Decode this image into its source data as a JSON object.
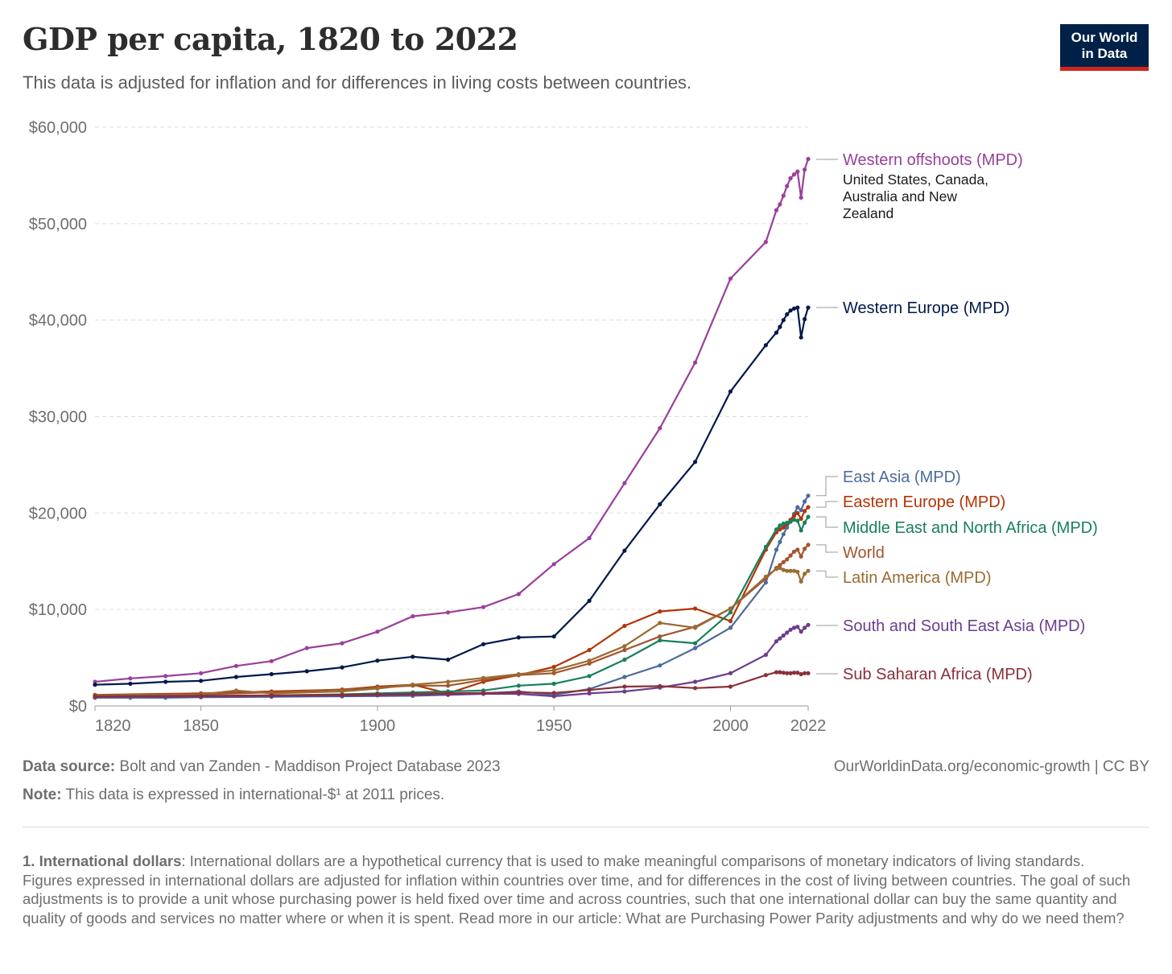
{
  "title": "GDP per capita, 1820 to 2022",
  "subtitle": "This data is adjusted for inflation and for differences in living costs between countries.",
  "logo": {
    "line1": "Our World",
    "line2": "in Data"
  },
  "colors": {
    "logo_bg": "#002147",
    "logo_accent": "#ce261e",
    "grid": "#dddddd"
  },
  "footer": {
    "source_label": "Data source:",
    "source_text": "Bolt and van Zanden - Maddison Project Database 2023",
    "note_label": "Note:",
    "note_text": "This data is expressed in international-$¹ at 2011 prices.",
    "url": "OurWorldinData.org/economic-growth | CC BY"
  },
  "footnote": {
    "label": "1. International dollars",
    "text": ": International dollars are a hypothetical currency that is used to make meaningful comparisons of monetary indicators of living standards. Figures expressed in international dollars are adjusted for inflation within countries over time, and for differences in the cost of living between countries. The goal of such adjustments is to provide a unit whose purchasing power is held fixed over time and across countries, such that one international dollar can buy the same quantity and quality of goods and services no matter where or when it is spent. Read more in our article: What are Purchasing Power Parity adjustments and why do we need them?"
  },
  "chart_data": {
    "type": "line",
    "xlim": [
      1820,
      2022
    ],
    "ylim": [
      0,
      60000
    ],
    "xticks": [
      1820,
      1850,
      1900,
      1950,
      2000,
      2022
    ],
    "xtick_labels": [
      "1820",
      "1850",
      "1900",
      "1950",
      "2000",
      "2022"
    ],
    "yticks": [
      0,
      10000,
      20000,
      30000,
      40000,
      50000,
      60000
    ],
    "ytick_labels": [
      "$0",
      "$10,000",
      "$20,000",
      "$30,000",
      "$40,000",
      "$50,000",
      "$60,000"
    ],
    "grid": true,
    "legend": "right, labels at line ends",
    "series": [
      {
        "name": "Western offshoots (MPD)",
        "note": "United States, Canada, Australia and New Zealand",
        "color": "#993f9a",
        "x": [
          1820,
          1830,
          1840,
          1850,
          1860,
          1870,
          1880,
          1890,
          1900,
          1910,
          1920,
          1930,
          1940,
          1950,
          1960,
          1970,
          1980,
          1990,
          2000,
          2010,
          2013,
          2014,
          2015,
          2016,
          2017,
          2018,
          2019,
          2020,
          2021,
          2022
        ],
        "y": [
          2500,
          2850,
          3100,
          3400,
          4150,
          4650,
          6000,
          6500,
          7700,
          9300,
          9700,
          10250,
          11600,
          14700,
          17400,
          23100,
          28800,
          35600,
          44300,
          48100,
          51400,
          52000,
          52900,
          53900,
          54700,
          55100,
          55400,
          52700,
          55600,
          56700
        ]
      },
      {
        "name": "Western Europe (MPD)",
        "color": "#00194a",
        "x": [
          1820,
          1830,
          1840,
          1850,
          1860,
          1870,
          1880,
          1890,
          1900,
          1910,
          1920,
          1930,
          1940,
          1950,
          1960,
          1970,
          1980,
          1990,
          2000,
          2010,
          2013,
          2014,
          2015,
          2016,
          2017,
          2018,
          2019,
          2020,
          2021,
          2022
        ],
        "y": [
          2200,
          2300,
          2500,
          2600,
          3000,
          3300,
          3600,
          4000,
          4700,
          5100,
          4800,
          6400,
          7100,
          7200,
          10900,
          16100,
          20900,
          25300,
          32600,
          37400,
          38700,
          39300,
          40000,
          40600,
          41000,
          41200,
          41300,
          38200,
          40100,
          41300
        ]
      },
      {
        "name": "East Asia (MPD)",
        "color": "#4c6a9c",
        "x": [
          1820,
          1830,
          1840,
          1850,
          1870,
          1890,
          1910,
          1920,
          1930,
          1940,
          1950,
          1960,
          1970,
          1980,
          1990,
          2000,
          2010,
          2013,
          2014,
          2015,
          2016,
          2017,
          2018,
          2019,
          2020,
          2021,
          2022
        ],
        "y": [
          850,
          850,
          850,
          900,
          950,
          1000,
          1050,
          1150,
          1300,
          1500,
          1150,
          1750,
          3000,
          4200,
          6000,
          8100,
          12800,
          16200,
          17000,
          17800,
          18500,
          19200,
          19900,
          20600,
          20300,
          21200,
          21800
        ]
      },
      {
        "name": "Eastern Europe (MPD)",
        "color": "#b13507",
        "x": [
          1820,
          1850,
          1870,
          1890,
          1900,
          1910,
          1920,
          1930,
          1940,
          1950,
          1960,
          1970,
          1980,
          1990,
          2000,
          2010,
          2013,
          2014,
          2015,
          2016,
          2017,
          2018,
          2019,
          2020,
          2021,
          2022
        ],
        "y": [
          1150,
          1300,
          1500,
          1700,
          2000,
          2200,
          1300,
          2500,
          3200,
          4050,
          5800,
          8300,
          9800,
          10100,
          8800,
          16200,
          18000,
          18300,
          18500,
          18900,
          19300,
          19700,
          20000,
          19400,
          20200,
          20600
        ]
      },
      {
        "name": "Middle East and North Africa (MPD)",
        "color": "#18805d",
        "x": [
          1820,
          1850,
          1870,
          1890,
          1900,
          1910,
          1920,
          1930,
          1940,
          1950,
          1960,
          1970,
          1980,
          1990,
          2000,
          2010,
          2013,
          2014,
          2015,
          2016,
          2017,
          2018,
          2019,
          2020,
          2021,
          2022
        ],
        "y": [
          950,
          1000,
          1100,
          1200,
          1300,
          1400,
          1500,
          1600,
          2100,
          2300,
          3100,
          4800,
          6800,
          6500,
          9700,
          16500,
          18300,
          18700,
          18900,
          19000,
          19100,
          19300,
          19200,
          18200,
          19000,
          19600
        ]
      },
      {
        "name": "World",
        "color": "#a2552c",
        "x": [
          1820,
          1850,
          1870,
          1890,
          1900,
          1910,
          1920,
          1930,
          1940,
          1950,
          1960,
          1970,
          1980,
          1990,
          2000,
          2010,
          2013,
          2014,
          2015,
          2016,
          2017,
          2018,
          2019,
          2020,
          2021,
          2022
        ],
        "y": [
          1100,
          1200,
          1400,
          1700,
          1900,
          2100,
          2100,
          2700,
          3200,
          3400,
          4400,
          5800,
          7200,
          8200,
          10100,
          13200,
          14300,
          14600,
          14900,
          15200,
          15600,
          16000,
          16200,
          15500,
          16300,
          16700
        ]
      },
      {
        "name": "Latin America (MPD)",
        "color": "#9a6b32",
        "x": [
          1820,
          1850,
          1860,
          1870,
          1890,
          1900,
          1910,
          1920,
          1930,
          1940,
          1950,
          1960,
          1970,
          1980,
          1990,
          2000,
          2010,
          2013,
          2014,
          2015,
          2016,
          2017,
          2018,
          2019,
          2020,
          2021,
          2022
        ],
        "y": [
          1100,
          1200,
          1600,
          1300,
          1500,
          1800,
          2200,
          2500,
          2900,
          3300,
          3700,
          4700,
          6200,
          8600,
          8100,
          10100,
          13400,
          14200,
          14300,
          14100,
          14000,
          14000,
          14000,
          13900,
          12900,
          13700,
          14000
        ]
      },
      {
        "name": "South and South East Asia (MPD)",
        "color": "#6b3d8e",
        "x": [
          1820,
          1850,
          1870,
          1890,
          1900,
          1910,
          1920,
          1930,
          1940,
          1950,
          1960,
          1970,
          1980,
          1990,
          2000,
          2010,
          2013,
          2014,
          2015,
          2016,
          2017,
          2018,
          2019,
          2020,
          2021,
          2022
        ],
        "y": [
          900,
          950,
          1000,
          1050,
          1100,
          1150,
          1150,
          1250,
          1250,
          1000,
          1300,
          1500,
          1900,
          2500,
          3400,
          5300,
          6700,
          7000,
          7300,
          7600,
          7900,
          8100,
          8200,
          7700,
          8100,
          8400
        ]
      },
      {
        "name": "Sub Saharan Africa (MPD)",
        "color": "#883039",
        "x": [
          1820,
          1850,
          1870,
          1890,
          1900,
          1910,
          1920,
          1930,
          1940,
          1950,
          1960,
          1970,
          1980,
          1990,
          2000,
          2010,
          2013,
          2014,
          2015,
          2016,
          2017,
          2018,
          2019,
          2020,
          2021,
          2022
        ],
        "y": [
          1000,
          1050,
          1100,
          1150,
          1200,
          1250,
          1300,
          1350,
          1400,
          1350,
          1650,
          2000,
          2050,
          1850,
          2000,
          3200,
          3500,
          3500,
          3450,
          3400,
          3400,
          3450,
          3450,
          3300,
          3400,
          3400
        ]
      }
    ],
    "labels": [
      {
        "series": 0,
        "text": "Western offshoots (MPD)",
        "sub": [
          "United States, Canada,",
          "Australia and New",
          "Zealand"
        ]
      },
      {
        "series": 1,
        "text": "Western Europe (MPD)"
      },
      {
        "series": 2,
        "text": "East Asia (MPD)"
      },
      {
        "series": 3,
        "text": "Eastern Europe (MPD)"
      },
      {
        "series": 4,
        "text": "Middle East and North Africa (MPD)"
      },
      {
        "series": 5,
        "text": "World"
      },
      {
        "series": 6,
        "text": "Latin America (MPD)"
      },
      {
        "series": 7,
        "text": "South and South East Asia (MPD)"
      },
      {
        "series": 8,
        "text": "Sub Saharan Africa (MPD)"
      }
    ]
  }
}
